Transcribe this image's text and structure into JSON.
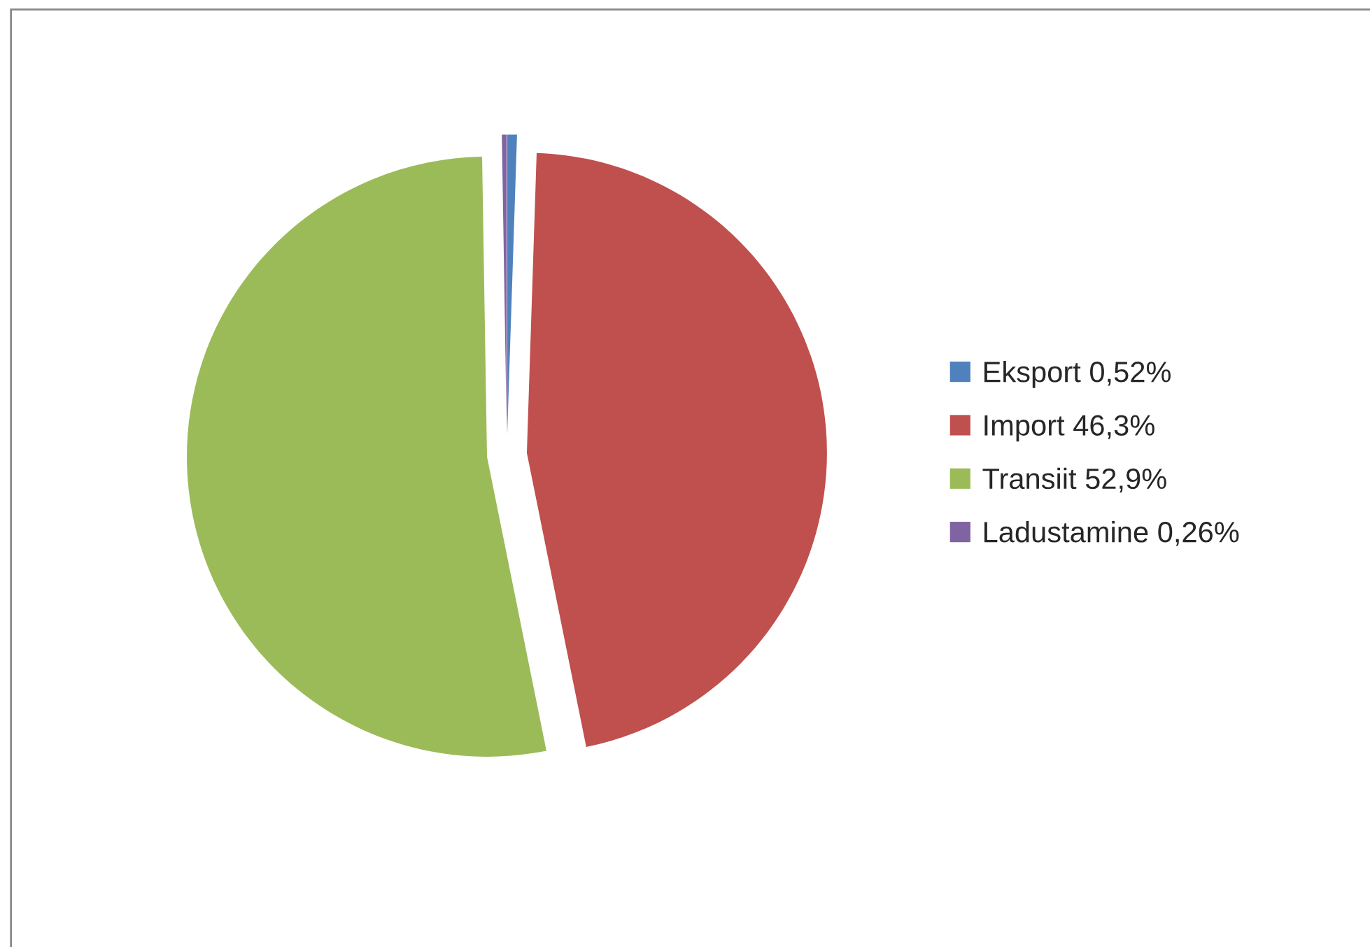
{
  "chart_data": {
    "type": "pie",
    "categories": [
      "Eksport 0,52%",
      "Import 46,3%",
      "Transiit 52,9%",
      "Ladustamine 0,26%"
    ],
    "values": [
      0.52,
      46.3,
      52.9,
      0.26
    ],
    "colors": [
      "#4f81bd",
      "#c0504d",
      "#9bbb59",
      "#8064a2"
    ],
    "legend": "right"
  }
}
